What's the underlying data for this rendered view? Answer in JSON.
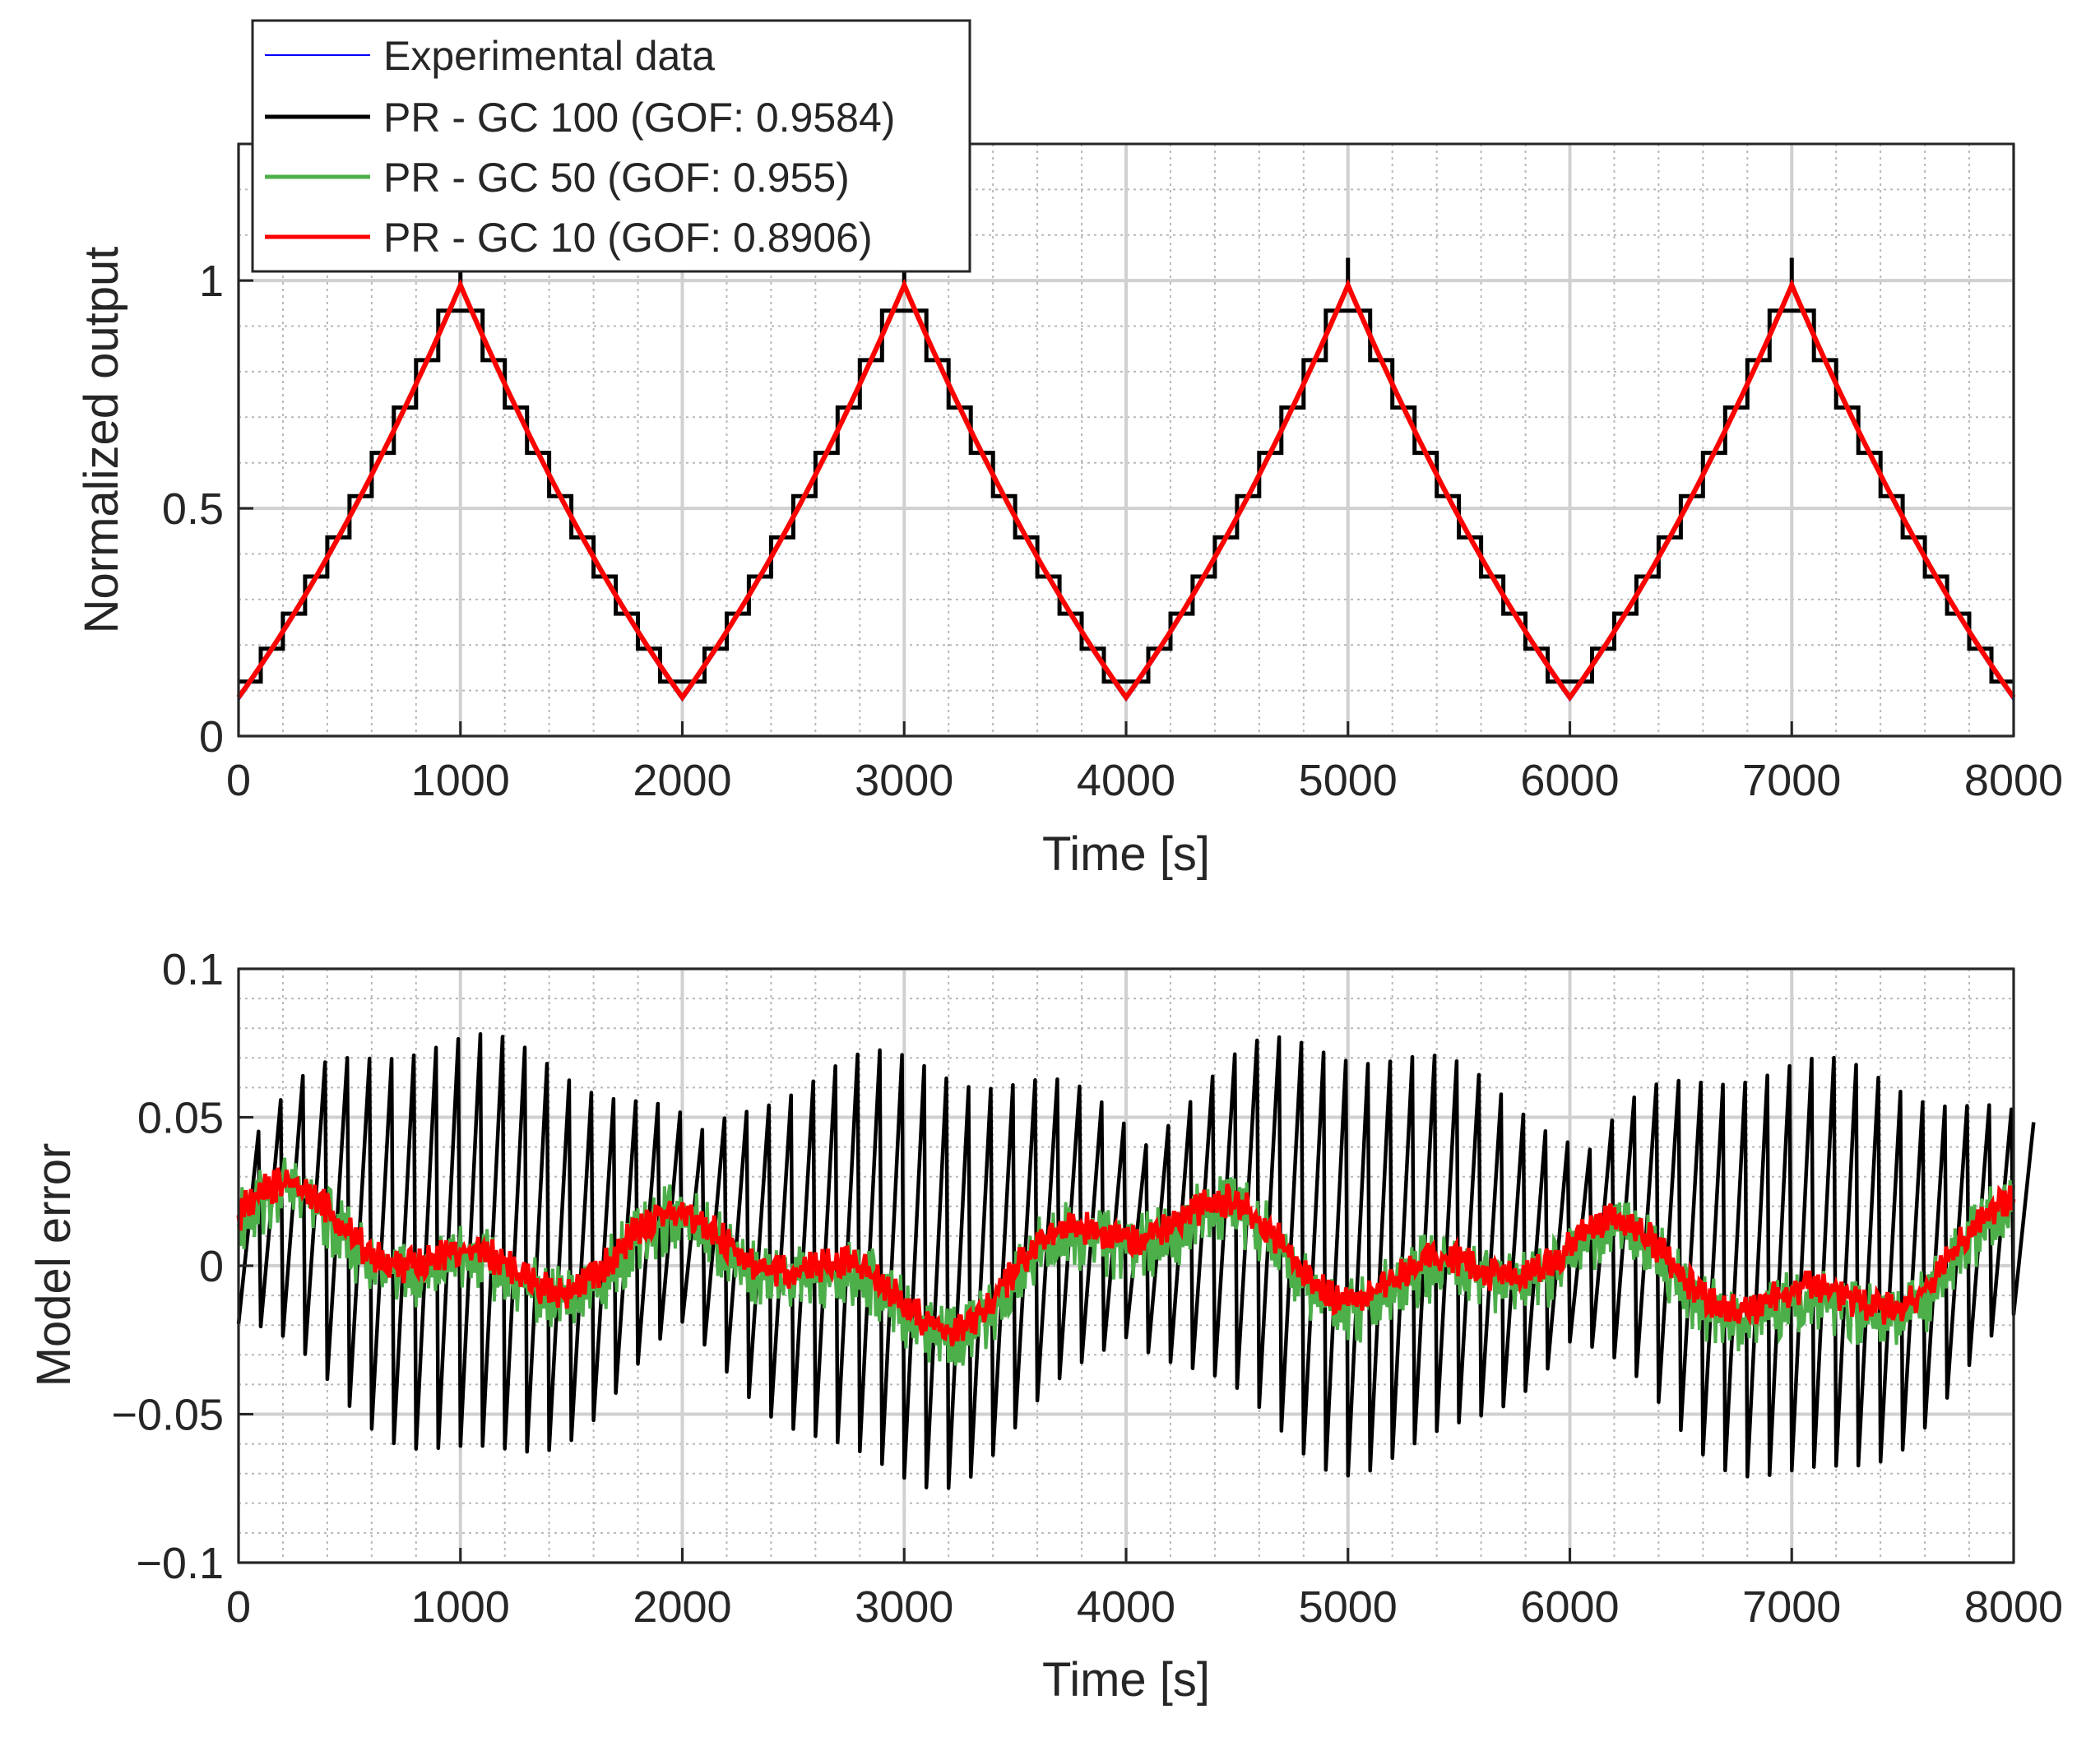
{
  "legend": {
    "entries": [
      {
        "label": "Experimental data",
        "color": "#0000ff"
      },
      {
        "label": "PR - GC 100 (GOF: 0.9584)",
        "color": "#000000"
      },
      {
        "label": "PR - GC 50   (GOF: 0.955)",
        "color": "#4daf4a"
      },
      {
        "label": "PR - GC 10   (GOF: 0.8906)",
        "color": "#ff0000"
      }
    ]
  },
  "chart_data": [
    {
      "type": "line",
      "title": "",
      "xlabel": "Time [s]",
      "ylabel": "Normalized output",
      "xlim": [
        0,
        8000
      ],
      "ylim": [
        0,
        1.3
      ],
      "xticks": [
        "0",
        "1000",
        "2000",
        "3000",
        "4000",
        "5000",
        "6000",
        "7000",
        "8000"
      ],
      "yticks": [
        "0",
        "0.5",
        "1"
      ],
      "grid": true,
      "series_names": [
        "Experimental data",
        "PR - GC 100 (GOF: 0.9584)",
        "PR - GC 50   (GOF: 0.955)",
        "PR - GC 10   (GOF: 0.8906)"
      ],
      "signal": {
        "period_s": 2000,
        "min": 0.085,
        "max": 0.99,
        "peaks_at": [
          1000,
          3000,
          5000,
          7000
        ],
        "troughs_at": [
          0,
          2000,
          4000,
          6000,
          8000
        ],
        "staircase_step_s": 100
      }
    },
    {
      "type": "line",
      "title": "",
      "xlabel": "Time [s]",
      "ylabel": "Model error",
      "xlim": [
        0,
        8000
      ],
      "ylim": [
        -0.1,
        0.1
      ],
      "xticks": [
        "0",
        "1000",
        "2000",
        "3000",
        "4000",
        "5000",
        "6000",
        "7000",
        "8000"
      ],
      "yticks": [
        "−0.1",
        "−0.05",
        "0",
        "0.05",
        "0.1"
      ],
      "grid": true,
      "series_names": [
        "PR - GC 100 (GOF: 0.9584)",
        "PR - GC 50   (GOF: 0.955)",
        "PR - GC 10   (GOF: 0.8906)"
      ],
      "error": {
        "gc100_sawtooth_period_s": 100,
        "gc100_amplitude_peak": 0.075,
        "gc100_amplitude_min": 0.035,
        "gc50_band_halfwidth": 0.006,
        "gc10_trend_range": [
          -0.02,
          0.03
        ]
      }
    }
  ]
}
